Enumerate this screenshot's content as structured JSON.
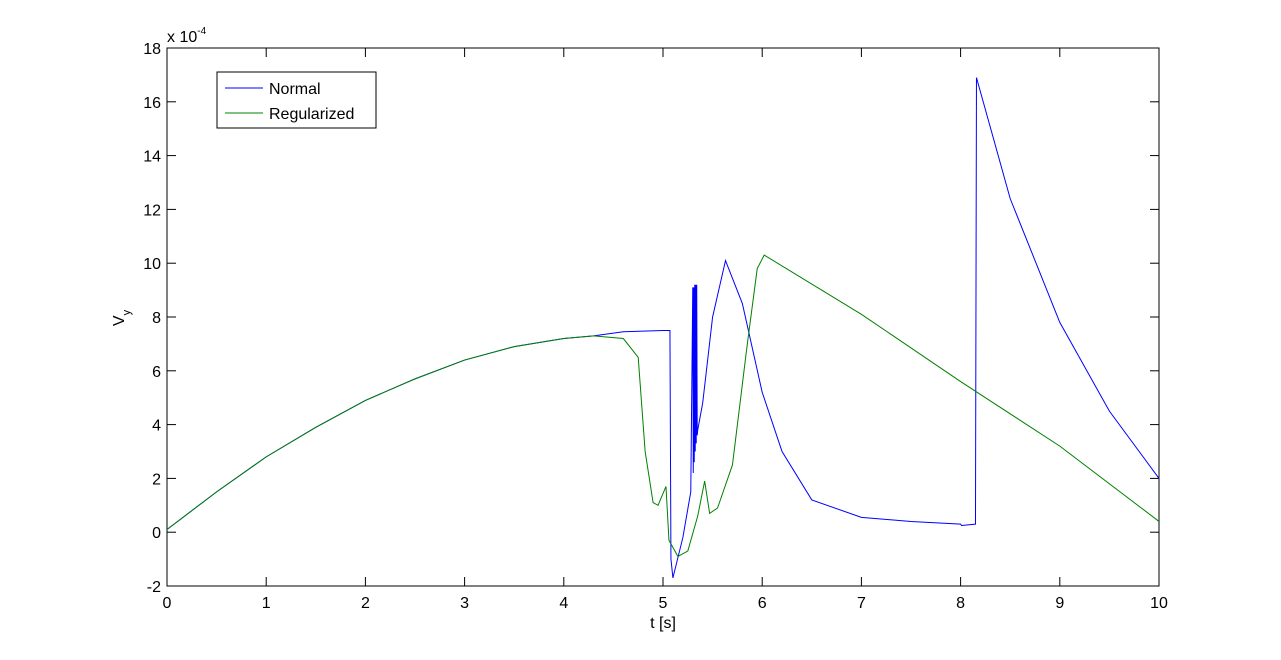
{
  "chart_data": {
    "type": "line",
    "xlabel": "t [s]",
    "ylabel": "V",
    "ylabel_sub": "y",
    "y_multiplier": {
      "base": "x 10",
      "exponent": "-4"
    },
    "xlim": [
      0,
      10
    ],
    "ylim": [
      -2,
      18
    ],
    "xticks": [
      0,
      1,
      2,
      3,
      4,
      5,
      6,
      7,
      8,
      9,
      10
    ],
    "yticks": [
      -2,
      0,
      2,
      4,
      6,
      8,
      10,
      12,
      14,
      16,
      18
    ],
    "grid": false,
    "legend": "upper left",
    "series": [
      {
        "name": "Normal",
        "color": "#0000ff",
        "x": [
          0,
          0.5,
          1,
          1.5,
          2,
          2.5,
          3,
          3.5,
          4,
          4.3,
          4.6,
          5.0,
          5.07,
          5.08,
          5.1,
          5.2,
          5.28,
          5.3,
          5.305,
          5.31,
          5.315,
          5.32,
          5.325,
          5.33,
          5.335,
          5.34,
          5.345,
          5.35,
          5.4,
          5.5,
          5.63,
          5.8,
          6.0,
          6.2,
          6.5,
          7.0,
          7.5,
          8.0,
          8.01,
          8.15,
          8.16,
          8.5,
          9.0,
          9.5,
          10
        ],
        "values": [
          0.1,
          1.5,
          2.8,
          3.9,
          4.9,
          5.7,
          6.4,
          6.9,
          7.2,
          7.3,
          7.45,
          7.5,
          7.5,
          -1.0,
          -1.7,
          -0.2,
          1.5,
          9.1,
          2.2,
          9.1,
          2.6,
          9.2,
          3.0,
          9.2,
          3.3,
          9.2,
          3.6,
          3.8,
          4.8,
          8.0,
          10.1,
          8.5,
          5.2,
          3.0,
          1.2,
          0.55,
          0.4,
          0.3,
          0.25,
          0.3,
          16.9,
          12.4,
          7.8,
          4.5,
          2.0
        ]
      },
      {
        "name": "Regularized",
        "color": "#008000",
        "x": [
          0,
          0.5,
          1,
          1.5,
          2,
          2.5,
          3,
          3.5,
          4,
          4.3,
          4.6,
          4.75,
          4.82,
          4.9,
          4.95,
          5.03,
          5.06,
          5.15,
          5.25,
          5.35,
          5.42,
          5.47,
          5.55,
          5.7,
          5.85,
          5.95,
          6.02,
          7,
          8,
          9,
          10
        ],
        "values": [
          0.1,
          1.5,
          2.8,
          3.9,
          4.9,
          5.7,
          6.4,
          6.9,
          7.2,
          7.3,
          7.2,
          6.5,
          3.0,
          1.1,
          1.0,
          1.7,
          -0.3,
          -0.9,
          -0.7,
          0.6,
          1.9,
          0.7,
          0.9,
          2.5,
          7.0,
          9.8,
          10.3,
          8.1,
          5.6,
          3.2,
          0.4
        ]
      }
    ]
  }
}
